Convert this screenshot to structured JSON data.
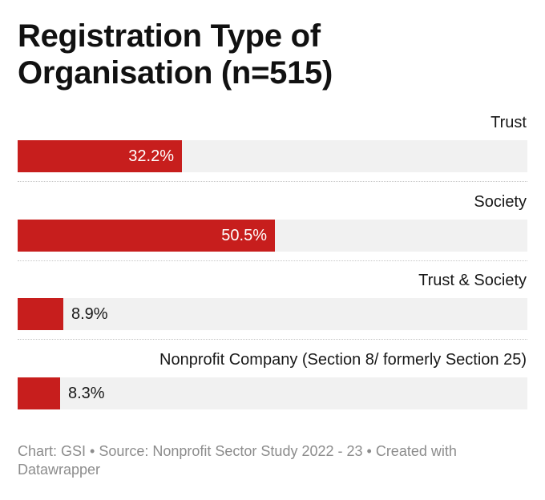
{
  "chart_data": {
    "type": "bar",
    "orientation": "horizontal",
    "title": "Registration Type of Organisation (n=515)",
    "categories": [
      "Trust",
      "Society",
      "Trust & Society",
      "Nonprofit Company (Section 8/ formerly Section 25)"
    ],
    "values": [
      32.2,
      50.5,
      8.9,
      8.3
    ],
    "value_labels": [
      "32.2%",
      "50.5%",
      "8.9%",
      "8.3%"
    ],
    "unit": "%",
    "xlim": [
      0,
      100
    ],
    "bar_color": "#c71e1d",
    "track_color": "#f1f1f1",
    "xlabel": "",
    "ylabel": ""
  },
  "footer": {
    "text": "Chart: GSI • Source: Nonprofit Sector Study 2022 - 23 • Created with Datawrapper"
  }
}
